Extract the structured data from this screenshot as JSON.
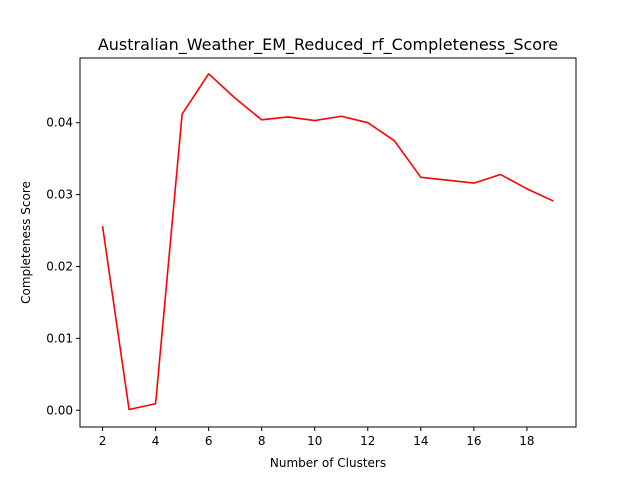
{
  "chart_data": {
    "type": "line",
    "title": "Australian_Weather_EM_Reduced_rf_Completeness_Score",
    "xlabel": "Number of Clusters",
    "ylabel": "Completeness Score",
    "xlim": [
      1.15,
      19.85
    ],
    "ylim": [
      -0.00233,
      0.049
    ],
    "xticks": [
      2,
      4,
      6,
      8,
      10,
      12,
      14,
      16,
      18
    ],
    "xtick_labels": [
      "2",
      "4",
      "6",
      "8",
      "10",
      "12",
      "14",
      "16",
      "18"
    ],
    "yticks": [
      0.0,
      0.01,
      0.02,
      0.03,
      0.04
    ],
    "ytick_labels": [
      "0.00",
      "0.01",
      "0.02",
      "0.03",
      "0.04"
    ],
    "grid": false,
    "series": [
      {
        "color": "#ff0000",
        "x": [
          2,
          3,
          4,
          5,
          6,
          7,
          8,
          9,
          10,
          11,
          12,
          13,
          14,
          15,
          16,
          17,
          18,
          19
        ],
        "values": [
          0.0256,
          0.0001,
          0.0009,
          0.0412,
          0.0468,
          0.0434,
          0.0404,
          0.0408,
          0.0403,
          0.0409,
          0.04,
          0.0375,
          0.0324,
          0.032,
          0.0316,
          0.0328,
          0.0308,
          0.0291
        ]
      }
    ]
  }
}
